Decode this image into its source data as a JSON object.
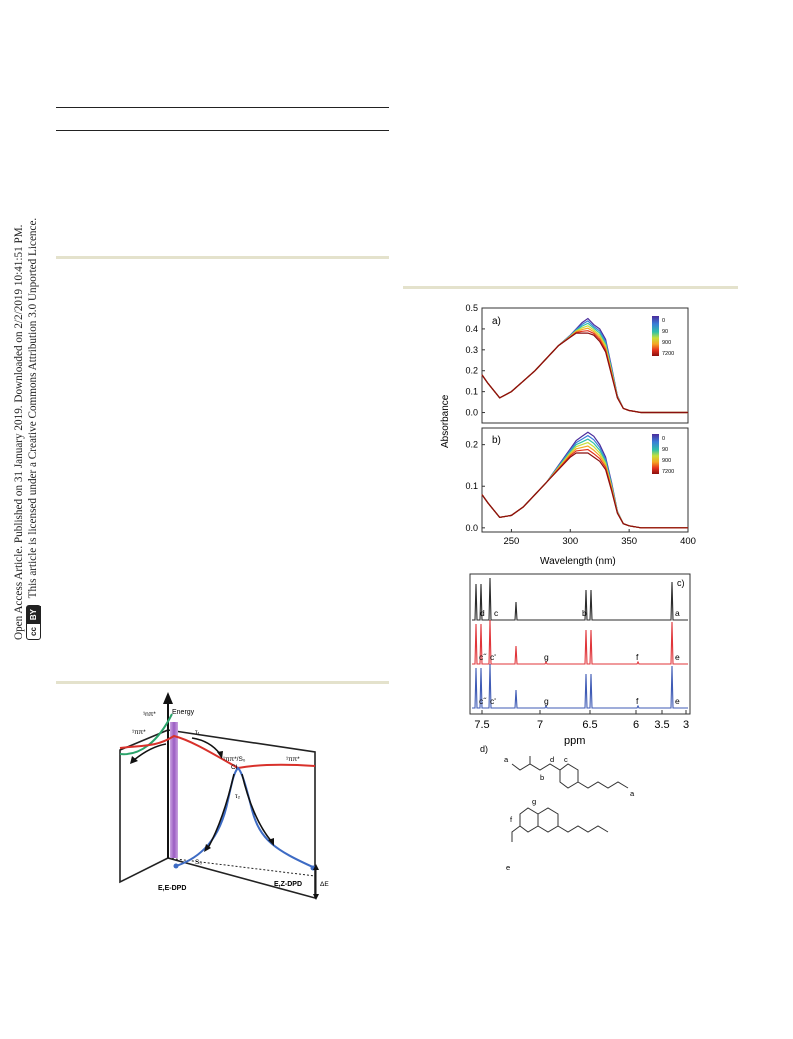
{
  "sidebar": {
    "line1": "Open Access Article. Published on 31 January 2019. Downloaded on 2/2/2019 10:41:51 PM.",
    "line2": "This article is licensed under a Creative Commons Attribution 3.0 Unported Licence.",
    "cc_label": "cc",
    "by_label": "BY"
  },
  "energy_diagram": {
    "y_axis_label": "Energy",
    "state_npi": "¹nπ*",
    "state_pipi_left": "¹ππ*",
    "state_pipi_right": "¹ππ*",
    "conical_intersection": "¹ππ*/S₀",
    "ci_label": "CI",
    "tau1": "τ₁",
    "tau2": "τ₂",
    "s0_label": "S₀",
    "left_isomer": "E,E-DPD",
    "right_isomer": "E,Z-DPD",
    "delta_e": "ΔE",
    "colors": {
      "npi": "#2aa36a",
      "pipi": "#d8312b",
      "s0": "#3d6bc4",
      "excitation": "#a46ac7"
    }
  },
  "chart_data": [
    {
      "type": "line",
      "panel": "a)",
      "ylabel": "Absorbance",
      "xlabel": "Wavelength (nm)",
      "xlim": [
        225,
        400
      ],
      "ylim": [
        -0.05,
        0.5
      ],
      "yticks": [
        "0.0",
        "0.1",
        "0.2",
        "0.3",
        "0.4",
        "0.5"
      ],
      "legend_labels": [
        "0",
        "90",
        "900",
        "7200"
      ],
      "legend_position": "top-right",
      "series": [
        {
          "x": [
            225,
            230,
            240,
            250,
            260,
            270,
            280,
            290,
            300,
            305,
            310,
            315,
            320,
            325,
            330,
            335,
            340,
            345,
            350,
            360,
            380,
            400
          ],
          "values": [
            0.18,
            0.14,
            0.07,
            0.1,
            0.15,
            0.2,
            0.26,
            0.32,
            0.37,
            0.4,
            0.43,
            0.45,
            0.42,
            0.4,
            0.35,
            0.22,
            0.08,
            0.02,
            0.01,
            0.0,
            0.0,
            0.0
          ]
        },
        {
          "x": [
            225,
            230,
            240,
            250,
            260,
            270,
            280,
            290,
            300,
            305,
            310,
            315,
            320,
            325,
            330,
            335,
            340,
            345,
            350,
            360,
            380,
            400
          ],
          "values": [
            0.18,
            0.14,
            0.07,
            0.1,
            0.15,
            0.2,
            0.26,
            0.32,
            0.36,
            0.38,
            0.38,
            0.38,
            0.37,
            0.34,
            0.29,
            0.18,
            0.07,
            0.02,
            0.01,
            0.0,
            0.0,
            0.0
          ]
        }
      ]
    },
    {
      "type": "line",
      "panel": "b)",
      "xlabel": "Wavelength (nm)",
      "xlim": [
        225,
        400
      ],
      "ylim": [
        -0.01,
        0.24
      ],
      "yticks": [
        "0.0",
        "0.1",
        "0.2"
      ],
      "xticks": [
        "250",
        "300",
        "350",
        "400"
      ],
      "legend_labels": [
        "0",
        "90",
        "900",
        "7200"
      ],
      "legend_position": "top-right",
      "series": [
        {
          "x": [
            225,
            230,
            240,
            250,
            260,
            270,
            280,
            290,
            300,
            305,
            310,
            315,
            320,
            325,
            330,
            335,
            340,
            345,
            350,
            360,
            380,
            400
          ],
          "values": [
            0.08,
            0.06,
            0.025,
            0.03,
            0.05,
            0.08,
            0.11,
            0.15,
            0.19,
            0.21,
            0.22,
            0.23,
            0.22,
            0.2,
            0.17,
            0.11,
            0.04,
            0.01,
            0.005,
            0.0,
            0.0,
            0.0
          ]
        },
        {
          "x": [
            225,
            230,
            240,
            250,
            260,
            270,
            280,
            290,
            300,
            305,
            310,
            315,
            320,
            325,
            330,
            335,
            340,
            345,
            350,
            360,
            380,
            400
          ],
          "values": [
            0.08,
            0.06,
            0.025,
            0.03,
            0.05,
            0.08,
            0.11,
            0.14,
            0.17,
            0.18,
            0.18,
            0.18,
            0.17,
            0.16,
            0.14,
            0.09,
            0.035,
            0.01,
            0.005,
            0.0,
            0.0,
            0.0
          ]
        }
      ]
    },
    {
      "type": "line",
      "panel": "c)",
      "xlabel": "ppm",
      "xticks": [
        "7.5",
        "7",
        "6.5",
        "6",
        "3.5",
        "3"
      ],
      "spectra": [
        {
          "color": "#2b2b2b",
          "labels": [
            "d",
            "c",
            "b",
            "a"
          ]
        },
        {
          "color": "#e0353a",
          "labels": [
            "c˝",
            "cʹ",
            "g",
            "f",
            "e"
          ]
        },
        {
          "color": "#3f5bb5",
          "labels": [
            "c˝",
            "cʹ",
            "g",
            "f",
            "e"
          ]
        }
      ]
    }
  ],
  "structures": {
    "panel": "d)",
    "labels": [
      "a",
      "b",
      "c",
      "d",
      "e",
      "f",
      "g"
    ]
  }
}
